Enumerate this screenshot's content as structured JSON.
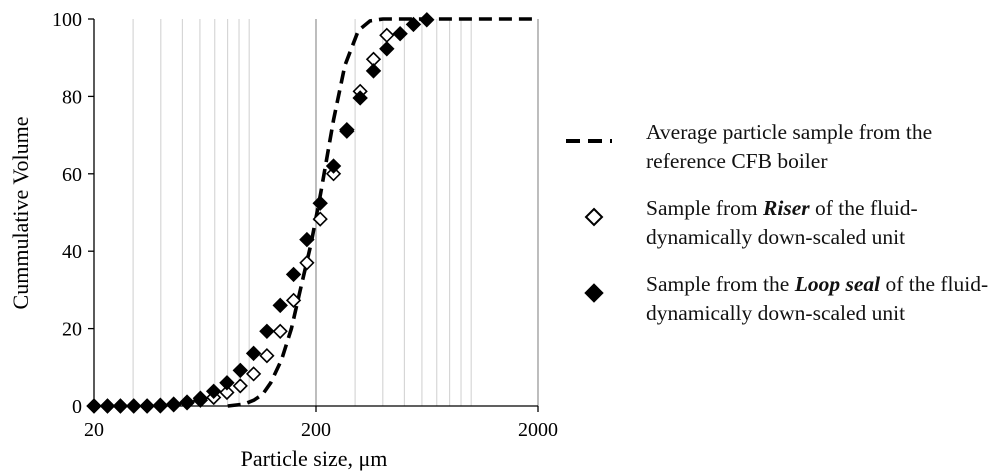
{
  "chart_data": {
    "type": "scatter",
    "xlabel": "Particle size, μm",
    "ylabel": "Cummulative Volume",
    "xscale": "log",
    "xlim": [
      20,
      2000
    ],
    "ylim": [
      0,
      100
    ],
    "xticks": [
      "20",
      "200",
      "2000"
    ],
    "yticks": [
      "0",
      "20",
      "40",
      "60",
      "80",
      "100"
    ],
    "grid": "vertical log minor gridlines",
    "legend_position": "right",
    "series": [
      {
        "name": "Average particle sample from the reference CFB boiler",
        "style": "dashed-line",
        "color": "#000000",
        "x": [
          80,
          95,
          105,
          115,
          125,
          140,
          155,
          170,
          190,
          210,
          240,
          270,
          310,
          350,
          400,
          500,
          700,
          1000,
          1500,
          2000
        ],
        "y": [
          0,
          0.5,
          1.5,
          3,
          6,
          12,
          20,
          30,
          42,
          55,
          74,
          88,
          97,
          99.5,
          100,
          100,
          100,
          100,
          100,
          100
        ]
      },
      {
        "name": "Sample from Riser of the fluid-dynamically down-scaled unit",
        "style": "open-diamond",
        "color": "#000000",
        "x": [
          20,
          23,
          26.3,
          30.2,
          34.7,
          39.8,
          45.7,
          52.5,
          60.3,
          69.2,
          79.4,
          91.2,
          104.7,
          120.2,
          138,
          158.5,
          182,
          208.9,
          239.9,
          275.4,
          316.2,
          363.1,
          416.9
        ],
        "y": [
          0,
          0,
          0,
          0,
          0,
          0,
          0.3,
          0.8,
          1.5,
          2.2,
          3.5,
          5.2,
          8.3,
          13,
          19.3,
          27.3,
          37,
          48.3,
          60,
          71,
          81.3,
          89.6,
          95.8
        ]
      },
      {
        "name": "Sample from the Loop seal of the fluid-dynamically down-scaled unit",
        "style": "filled-diamond",
        "color": "#000000",
        "x": [
          20,
          23,
          26.3,
          30.2,
          34.7,
          39.8,
          45.7,
          52.5,
          60.3,
          69.2,
          79.4,
          91.2,
          104.7,
          120.2,
          138,
          158.5,
          182,
          208.9,
          239.9,
          275.4,
          316.2,
          363.1,
          416.9,
          478.6,
          549.5,
          631
        ],
        "y": [
          0,
          0,
          0,
          0,
          0,
          0.2,
          0.5,
          1,
          2,
          3.8,
          6,
          9.2,
          13.6,
          19.3,
          26,
          34,
          43,
          52.4,
          62,
          71.4,
          79.6,
          86.6,
          92.3,
          96.2,
          98.6,
          99.8
        ]
      }
    ]
  },
  "legend": {
    "items": [
      {
        "swatch": "dashed-line",
        "pre": "Average particle sample from the reference CFB boiler",
        "bold": "",
        "post": ""
      },
      {
        "swatch": "open-diamond",
        "pre": "Sample from ",
        "bold": "Riser",
        "post": " of the fluid-dynamically down-scaled unit"
      },
      {
        "swatch": "filled-diamond",
        "pre": "Sample from the ",
        "bold": "Loop seal",
        "post": " of the fluid-dynamically down-scaled unit"
      }
    ]
  }
}
